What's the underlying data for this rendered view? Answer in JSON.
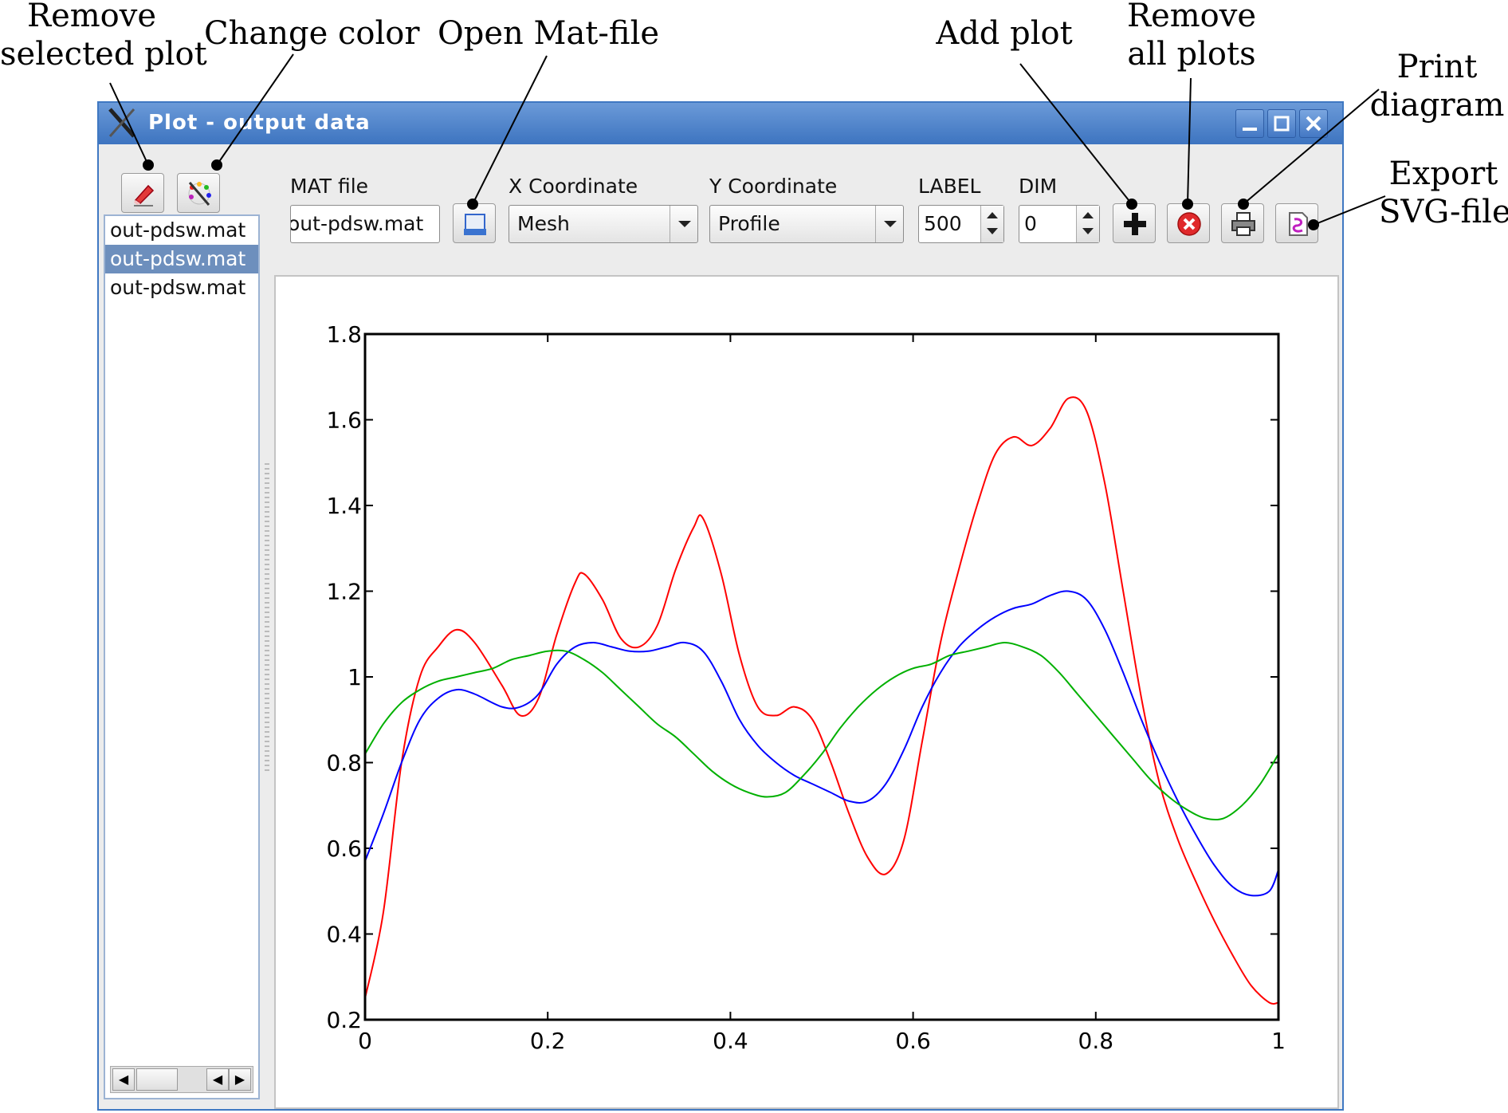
{
  "annotations": {
    "remove_selected": [
      "Remove",
      "selected plot"
    ],
    "change_color": [
      "Change color"
    ],
    "open_mat": [
      "Open Mat-file"
    ],
    "add_plot": [
      "Add plot"
    ],
    "remove_all": [
      "Remove",
      "all plots"
    ],
    "print": [
      "Print",
      "diagram"
    ],
    "export": [
      "Export",
      "SVG-file"
    ]
  },
  "window": {
    "title": "Plot - output data"
  },
  "toolbar": {
    "mat_file_label": "MAT file",
    "mat_file_value": "out-pdsw.mat",
    "x_label": "X Coordinate",
    "x_value": "Mesh",
    "y_label": "Y Coordinate",
    "y_value": "Profile",
    "label_label": "LABEL",
    "label_value": "500",
    "dim_label": "DIM",
    "dim_value": "0"
  },
  "file_list": [
    "out-pdsw.mat",
    "out-pdsw.mat",
    "out-pdsw.mat"
  ],
  "selected_file_index": 1,
  "colors": {
    "red": "#ff0000",
    "blue": "#0000ff",
    "green": "#00b000",
    "title_bar": "#3d74c0",
    "selection": "#6d8fbd"
  },
  "chart_data": {
    "type": "line",
    "xlim": [
      0,
      1
    ],
    "ylim": [
      0.2,
      1.8
    ],
    "xticks": [
      "0",
      "0.2",
      "0.4",
      "0.6",
      "0.8",
      "1"
    ],
    "yticks": [
      "0.2",
      "0.4",
      "0.6",
      "0.8",
      "1",
      "1.2",
      "1.4",
      "1.6",
      "1.8"
    ],
    "grid": false,
    "series": [
      {
        "color": "#ff0000",
        "x": [
          0,
          0.02,
          0.04,
          0.06,
          0.08,
          0.1,
          0.12,
          0.15,
          0.17,
          0.19,
          0.21,
          0.23,
          0.24,
          0.26,
          0.28,
          0.3,
          0.32,
          0.34,
          0.36,
          0.37,
          0.39,
          0.41,
          0.43,
          0.45,
          0.47,
          0.49,
          0.51,
          0.53,
          0.55,
          0.57,
          0.59,
          0.61,
          0.63,
          0.65,
          0.67,
          0.69,
          0.71,
          0.73,
          0.75,
          0.77,
          0.79,
          0.81,
          0.83,
          0.85,
          0.87,
          0.89,
          0.91,
          0.93,
          0.95,
          0.97,
          0.99,
          1
        ],
        "y": [
          0.25,
          0.45,
          0.8,
          1.0,
          1.07,
          1.11,
          1.08,
          0.98,
          0.91,
          0.95,
          1.1,
          1.22,
          1.24,
          1.18,
          1.09,
          1.07,
          1.12,
          1.25,
          1.35,
          1.37,
          1.24,
          1.05,
          0.93,
          0.91,
          0.93,
          0.9,
          0.8,
          0.68,
          0.58,
          0.54,
          0.62,
          0.85,
          1.08,
          1.25,
          1.4,
          1.52,
          1.56,
          1.54,
          1.58,
          1.65,
          1.62,
          1.45,
          1.2,
          0.95,
          0.75,
          0.62,
          0.52,
          0.43,
          0.35,
          0.28,
          0.24,
          0.24
        ]
      },
      {
        "color": "#0000ff",
        "x": [
          0,
          0.02,
          0.04,
          0.06,
          0.08,
          0.1,
          0.12,
          0.15,
          0.17,
          0.19,
          0.21,
          0.23,
          0.25,
          0.27,
          0.29,
          0.31,
          0.33,
          0.35,
          0.37,
          0.39,
          0.41,
          0.43,
          0.45,
          0.47,
          0.49,
          0.51,
          0.53,
          0.55,
          0.57,
          0.59,
          0.61,
          0.63,
          0.65,
          0.67,
          0.69,
          0.71,
          0.73,
          0.75,
          0.77,
          0.79,
          0.81,
          0.83,
          0.85,
          0.87,
          0.89,
          0.91,
          0.93,
          0.95,
          0.97,
          0.99,
          1
        ],
        "y": [
          0.57,
          0.68,
          0.8,
          0.9,
          0.95,
          0.97,
          0.96,
          0.93,
          0.93,
          0.96,
          1.03,
          1.07,
          1.08,
          1.07,
          1.06,
          1.06,
          1.07,
          1.08,
          1.06,
          0.99,
          0.9,
          0.84,
          0.8,
          0.77,
          0.75,
          0.73,
          0.71,
          0.71,
          0.75,
          0.83,
          0.93,
          1.01,
          1.07,
          1.11,
          1.14,
          1.16,
          1.17,
          1.19,
          1.2,
          1.18,
          1.11,
          1.01,
          0.9,
          0.8,
          0.71,
          0.63,
          0.56,
          0.51,
          0.49,
          0.5,
          0.55
        ]
      },
      {
        "color": "#00b000",
        "x": [
          0,
          0.02,
          0.04,
          0.06,
          0.08,
          0.1,
          0.12,
          0.14,
          0.16,
          0.18,
          0.2,
          0.22,
          0.24,
          0.26,
          0.28,
          0.3,
          0.32,
          0.34,
          0.36,
          0.38,
          0.4,
          0.42,
          0.44,
          0.46,
          0.48,
          0.5,
          0.52,
          0.54,
          0.56,
          0.58,
          0.6,
          0.62,
          0.64,
          0.66,
          0.68,
          0.7,
          0.72,
          0.74,
          0.76,
          0.78,
          0.8,
          0.82,
          0.84,
          0.86,
          0.88,
          0.9,
          0.92,
          0.94,
          0.96,
          0.98,
          1
        ],
        "y": [
          0.82,
          0.89,
          0.94,
          0.97,
          0.99,
          1.0,
          1.01,
          1.02,
          1.04,
          1.05,
          1.06,
          1.06,
          1.04,
          1.01,
          0.97,
          0.93,
          0.89,
          0.86,
          0.82,
          0.78,
          0.75,
          0.73,
          0.72,
          0.73,
          0.77,
          0.82,
          0.88,
          0.93,
          0.97,
          1.0,
          1.02,
          1.03,
          1.05,
          1.06,
          1.07,
          1.08,
          1.07,
          1.05,
          1.01,
          0.96,
          0.91,
          0.86,
          0.81,
          0.76,
          0.72,
          0.69,
          0.67,
          0.67,
          0.7,
          0.75,
          0.82
        ]
      }
    ]
  }
}
